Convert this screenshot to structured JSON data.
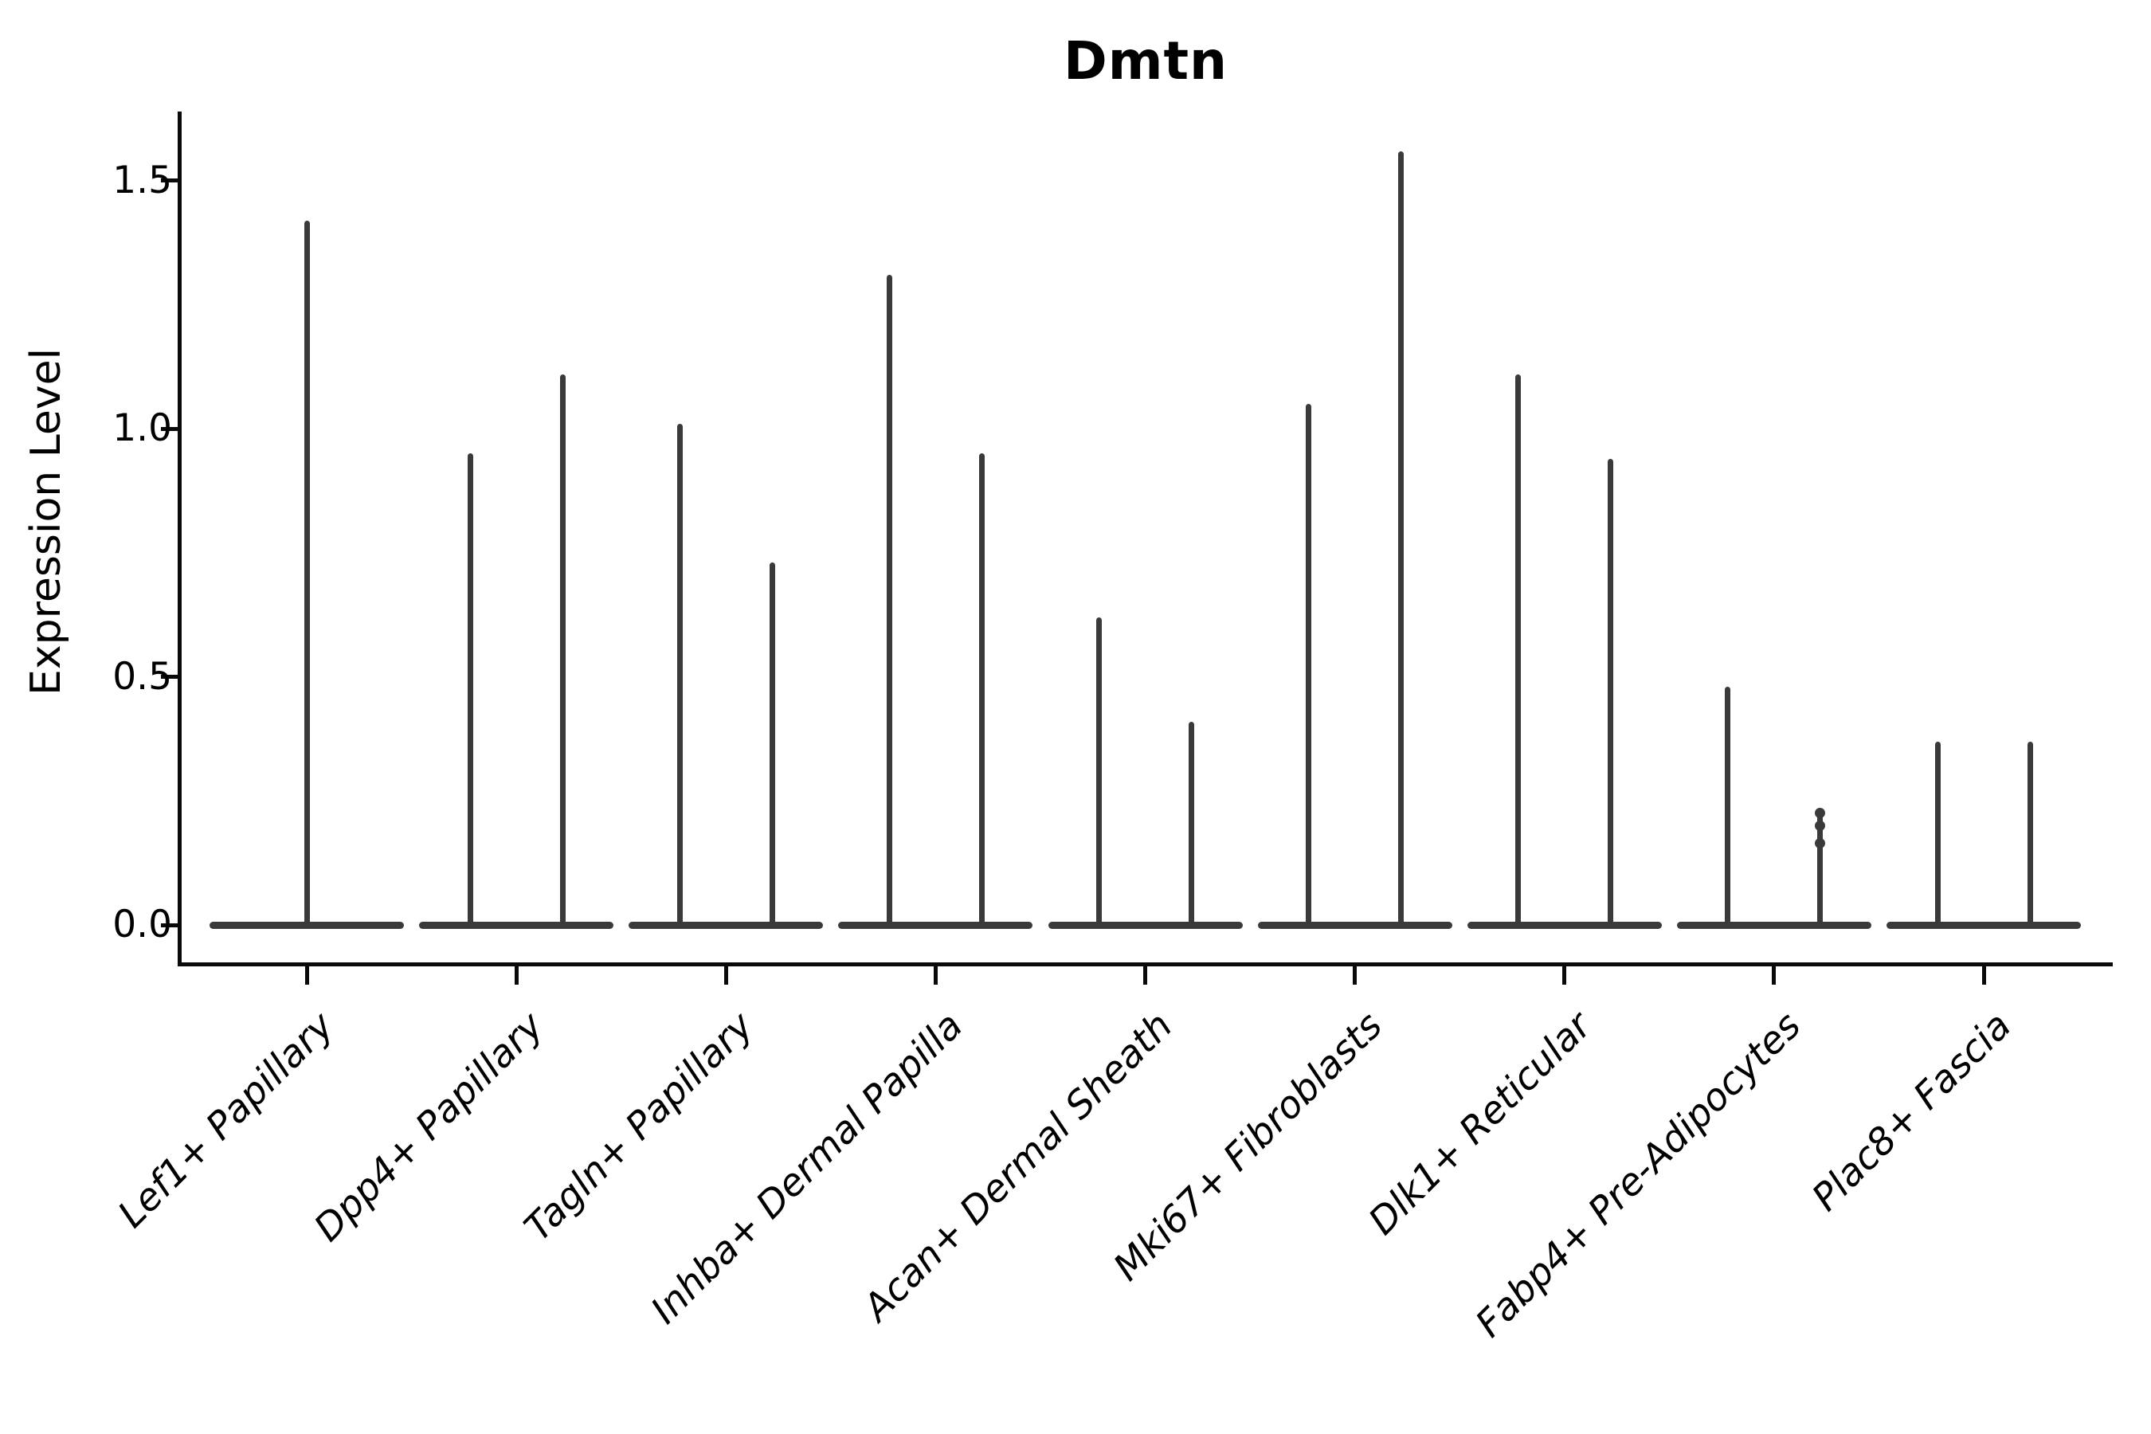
{
  "title": "Dmtn",
  "y_axis": {
    "label": "Expression Level",
    "tick_labels": [
      "0.0",
      "0.5",
      "1.0",
      "1.5"
    ]
  },
  "colors": {
    "violin": "#3a3a3a",
    "axis": "#0a0a0a",
    "text": "#000000",
    "background": "#ffffff"
  },
  "chart_data": {
    "type": "violin",
    "title": "Dmtn",
    "xlabel": "",
    "ylabel": "Expression Level",
    "ylim": [
      0,
      1.64
    ],
    "yticks": [
      0.0,
      0.5,
      1.0,
      1.5
    ],
    "ytick_labels": [
      "0.0",
      "0.5",
      "1.0",
      "1.5"
    ],
    "grid": false,
    "legend": "none",
    "description": "Each category shows flat violin mass at expression 0 with thin tails rising to the maximum expression value; all categories except the first contain two side-by-side violins.",
    "categories": [
      "Lef1+ Papillary",
      "Dpp4+ Papillary",
      "Tagln+ Papillary",
      "Inhba+ Dermal Papilla",
      "Acan+ Dermal Sheath",
      "Mki67+ Fibroblasts",
      "Dlk1+ Reticular",
      "Fabp4+ Pre-Adipocytes",
      "Plac8+ Fascia"
    ],
    "violins": [
      {
        "category": "Lef1+ Papillary",
        "tails": [
          {
            "pos": "center",
            "max": 1.42
          }
        ]
      },
      {
        "category": "Dpp4+ Papillary",
        "tails": [
          {
            "pos": "left",
            "max": 0.95
          },
          {
            "pos": "right",
            "max": 1.11
          }
        ]
      },
      {
        "category": "Tagln+ Papillary",
        "tails": [
          {
            "pos": "left",
            "max": 1.01
          },
          {
            "pos": "right",
            "max": 0.73
          }
        ]
      },
      {
        "category": "Inhba+ Dermal Papilla",
        "tails": [
          {
            "pos": "left",
            "max": 1.31
          },
          {
            "pos": "right",
            "max": 0.95
          }
        ]
      },
      {
        "category": "Acan+ Dermal Sheath",
        "tails": [
          {
            "pos": "left",
            "max": 0.62
          },
          {
            "pos": "right",
            "max": 0.41
          }
        ]
      },
      {
        "category": "Mki67+ Fibroblasts",
        "tails": [
          {
            "pos": "left",
            "max": 1.05
          },
          {
            "pos": "right",
            "max": 1.56
          }
        ]
      },
      {
        "category": "Dlk1+ Reticular",
        "tails": [
          {
            "pos": "left",
            "max": 1.11
          },
          {
            "pos": "right",
            "max": 0.94
          }
        ]
      },
      {
        "category": "Fabp4+ Pre-Adipocytes",
        "tails": [
          {
            "pos": "left",
            "max": 0.48
          },
          {
            "pos": "right",
            "max": 0.23,
            "knots": [
              0.225,
              0.2,
              0.165
            ]
          }
        ]
      },
      {
        "category": "Plac8+ Fascia",
        "tails": [
          {
            "pos": "left",
            "max": 0.37
          },
          {
            "pos": "right",
            "max": 0.37
          }
        ]
      }
    ],
    "baseline_value": 0.0
  }
}
